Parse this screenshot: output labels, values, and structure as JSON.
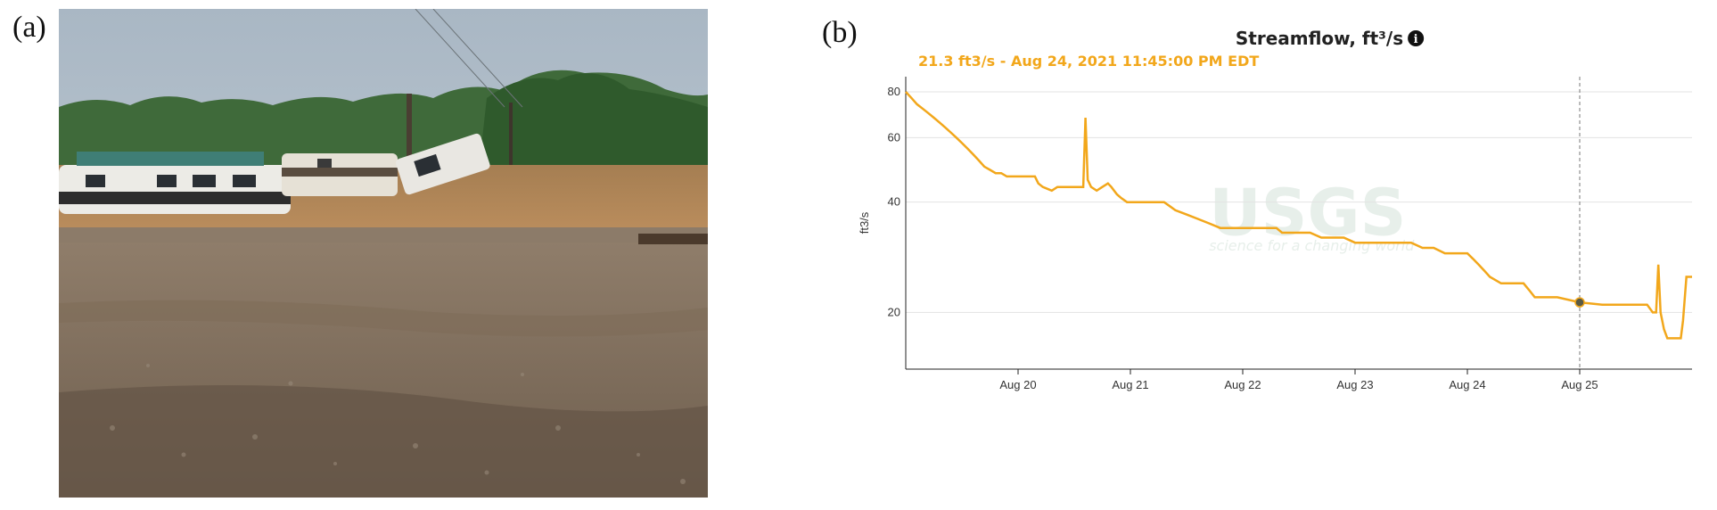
{
  "panels": {
    "a_label": "(a)",
    "b_label": "(b)"
  },
  "photo": {
    "subject": "flooded-campground-photo"
  },
  "chart_data": {
    "type": "line",
    "title": "Streamflow, ft³/s",
    "info_icon": "info-icon",
    "readout": "21.3 ft3/s - Aug 24, 2021 11:45:00 PM EDT",
    "ylabel": "ft3/s",
    "y_scale": "log",
    "ylim": [
      14,
      88
    ],
    "yticks": [
      20,
      40,
      60,
      80
    ],
    "xlim": [
      19.0,
      26.0
    ],
    "xticks": [
      {
        "value": 20,
        "label": "Aug 20"
      },
      {
        "value": 21,
        "label": "Aug 21"
      },
      {
        "value": 22,
        "label": "Aug 22"
      },
      {
        "value": 23,
        "label": "Aug 23"
      },
      {
        "value": 24,
        "label": "Aug 24"
      },
      {
        "value": 25,
        "label": "Aug 25"
      }
    ],
    "grid": true,
    "watermark": "USGS",
    "watermark_sub": "science for a changing world",
    "line_color": "#f2a71b",
    "hover_x": 25.0,
    "hover_y": 21.3,
    "series": [
      {
        "x": [
          19.0,
          19.05,
          19.1,
          19.15,
          19.2,
          19.25,
          19.3,
          19.35,
          19.4,
          19.45,
          19.5,
          19.55,
          19.6,
          19.65,
          19.7,
          19.75,
          19.8,
          19.85,
          19.9,
          20.15,
          20.18,
          20.22,
          20.3,
          20.35,
          20.45,
          20.58,
          20.6,
          20.62,
          20.65,
          20.7,
          20.75,
          20.8,
          20.83,
          20.88,
          20.92,
          20.97,
          21.3,
          21.35,
          21.4,
          21.5,
          21.6,
          21.7,
          21.8,
          22.3,
          22.35,
          22.5,
          22.6,
          22.7,
          22.8,
          22.9,
          23.0,
          23.5,
          23.6,
          23.7,
          23.8,
          24.0,
          24.05,
          24.1,
          24.15,
          24.2,
          24.3,
          24.45,
          24.5,
          24.55,
          24.6,
          24.65,
          24.8,
          25.0,
          25.2,
          25.3,
          25.5,
          25.6,
          25.65,
          25.68,
          25.7,
          25.72,
          25.75,
          25.78,
          25.8,
          25.85,
          25.9,
          25.92,
          25.95,
          26.0
        ],
        "y": [
          80,
          77,
          74,
          72,
          70,
          68,
          66,
          64,
          62,
          60,
          58,
          56,
          54,
          52,
          50,
          49,
          48,
          48,
          47,
          47,
          45,
          44,
          43,
          44,
          44,
          44,
          68,
          46,
          44,
          43,
          44,
          45,
          44,
          42,
          41,
          40,
          40,
          39,
          38,
          37,
          36,
          35,
          34,
          34,
          33,
          33,
          33,
          32,
          32,
          32,
          31,
          31,
          30,
          30,
          29,
          29,
          28,
          27,
          26,
          25,
          24,
          24,
          24,
          23,
          22,
          22,
          22,
          21.3,
          21,
          21,
          21,
          21,
          20,
          20,
          27,
          20,
          18,
          17,
          17,
          17,
          17,
          19,
          25,
          25
        ]
      }
    ]
  }
}
